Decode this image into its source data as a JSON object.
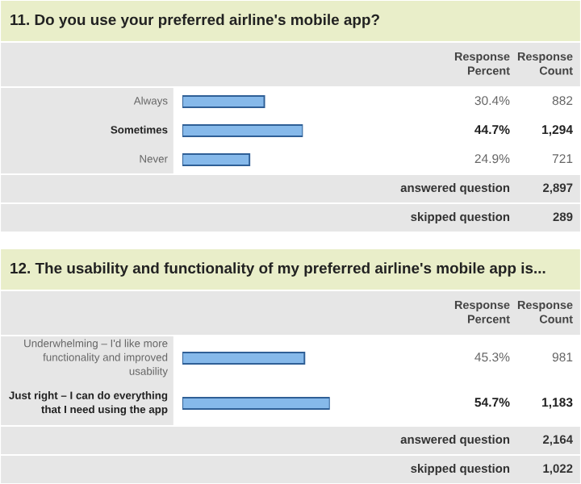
{
  "chart_data": [
    {
      "type": "bar",
      "orientation": "horizontal",
      "title": "11. Do you use your preferred airline's mobile app?",
      "categories": [
        "Always",
        "Sometimes",
        "Never"
      ],
      "values": [
        30.4,
        44.7,
        24.9
      ],
      "value_labels": [
        "30.4%",
        "44.7%",
        "24.9%"
      ],
      "color": "#86b9ea",
      "annotations": [
        "Response Percent",
        "Response Count",
        "882",
        "1,294",
        "721",
        "answered question",
        "2,897",
        "skipped question",
        "289"
      ]
    },
    {
      "type": "bar",
      "orientation": "horizontal",
      "title": "12. The usability and functionality of my preferred airline's mobile app is...",
      "categories": [
        "Underwhelming – I'd like more functionality and improved usability",
        "Just right – I can do everything that I need using the app"
      ],
      "values": [
        45.3,
        54.7
      ],
      "value_labels": [
        "45.3%",
        "54.7%"
      ],
      "color": "#86b9ea",
      "annotations": [
        "Response Percent",
        "Response Count",
        "981",
        "1,183",
        "answered question",
        "2,164",
        "skipped question",
        "1,022"
      ]
    }
  ]
}
